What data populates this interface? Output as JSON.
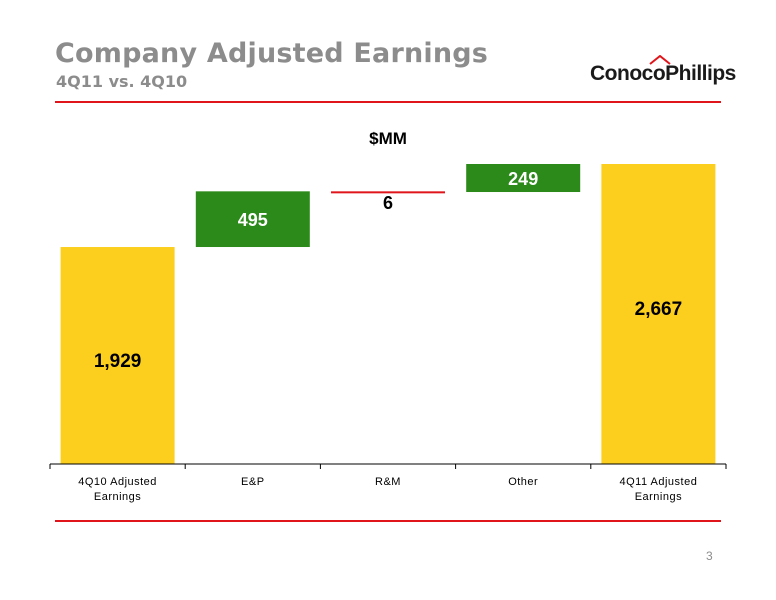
{
  "slide": {
    "title": "Company Adjusted Earnings",
    "subtitle": "4Q11 vs. 4Q10",
    "logo_text": "ConocoPhillips",
    "page_number": "3"
  },
  "colors": {
    "accent_red": "#e0151b",
    "total_bar": "#fccf1f",
    "increase_bar": "#2b8a19",
    "decrease_line": "#e0151b",
    "title_gray": "#8c8c8c"
  },
  "chart_data": {
    "type": "bar",
    "subtype": "waterfall",
    "unit_label": "$MM",
    "categories": [
      "4Q10 Adjusted Earnings",
      "E&P",
      "R&M",
      "Other",
      "4Q11 Adjusted Earnings"
    ],
    "category_lines": [
      [
        "4Q10 Adjusted",
        "Earnings"
      ],
      [
        "E&P"
      ],
      [
        "R&M"
      ],
      [
        "Other"
      ],
      [
        "4Q11 Adjusted",
        "Earnings"
      ]
    ],
    "values": [
      1929,
      495,
      -6,
      249,
      2667
    ],
    "labels": [
      "1,929",
      "495",
      "6",
      "249",
      "2,667"
    ],
    "kinds": [
      "total",
      "increase",
      "decrease",
      "increase",
      "total"
    ],
    "ylim": [
      0,
      2750
    ],
    "grid": false,
    "legend": "none"
  }
}
